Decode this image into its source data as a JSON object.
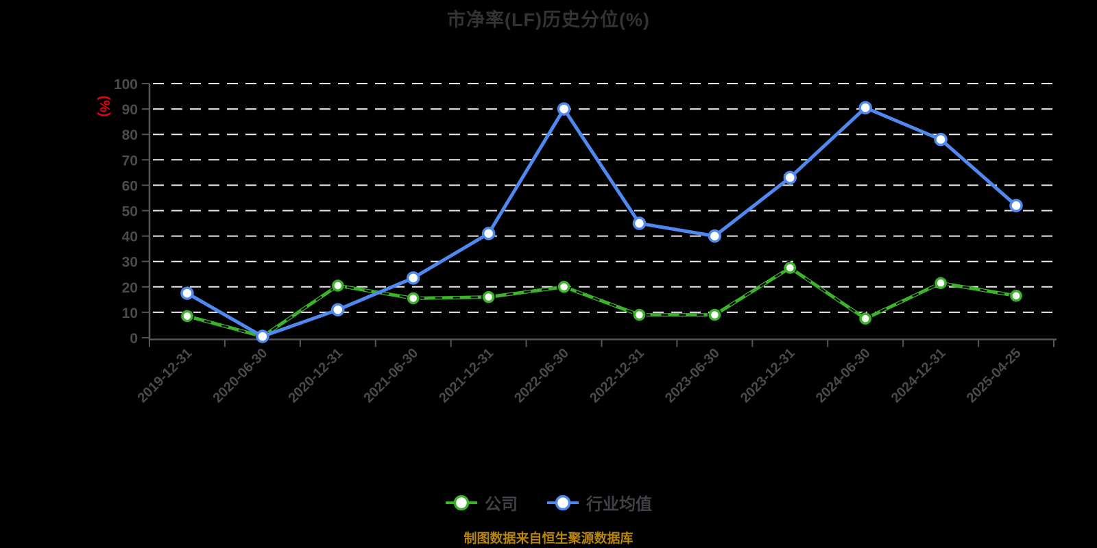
{
  "page": {
    "background": "#000000"
  },
  "title": {
    "text": "市净率(LF)历史分位(%)",
    "color": "#333333"
  },
  "legend": {
    "items": [
      {
        "label": "公司",
        "color": "#3cb42a"
      },
      {
        "label": "行业均值",
        "color": "#4f89f0"
      }
    ]
  },
  "footer": {
    "text": "制图数据来自恒生聚源数据库",
    "color": "#b8860b"
  },
  "chart_data": {
    "type": "line",
    "title": "市净率(LF)历史分位(%)",
    "ylabel": "(%)",
    "ylabel_color": "#e60012",
    "categories": [
      "2019-12-31",
      "2020-06-30",
      "2020-12-31",
      "2021-06-30",
      "2021-12-31",
      "2022-06-30",
      "2022-12-31",
      "2023-06-30",
      "2023-12-31",
      "2024-06-30",
      "2024-12-31",
      "2025-04-25"
    ],
    "series": [
      {
        "name": "公司",
        "color": "#3cb42a",
        "marker": "circle-white-fill",
        "line_style": "solid-with-black-dash-overlay",
        "values": [
          8.5,
          0.5,
          20.5,
          15.5,
          16,
          20,
          9,
          9,
          27.5,
          7.5,
          21.5,
          16.5
        ]
      },
      {
        "name": "行业均值",
        "color": "#4f89f0",
        "marker": "circle-white-fill",
        "line_style": "solid",
        "values": [
          17.5,
          0.5,
          11,
          23.5,
          41,
          90,
          45,
          40,
          63,
          90.5,
          78,
          52
        ]
      }
    ],
    "ylim": [
      0,
      100
    ],
    "y_tick_step": 10,
    "y_tick_labels": [
      "0",
      "10",
      "20",
      "30",
      "40",
      "50",
      "60",
      "70",
      "80",
      "90",
      "100"
    ],
    "axis_color": "#54565b",
    "tick_label_color": "#4a4b4e",
    "grid": {
      "horizontal": true,
      "style": "dashed",
      "color": "#ececec"
    },
    "legend_position": "bottom",
    "background": "#000000"
  }
}
